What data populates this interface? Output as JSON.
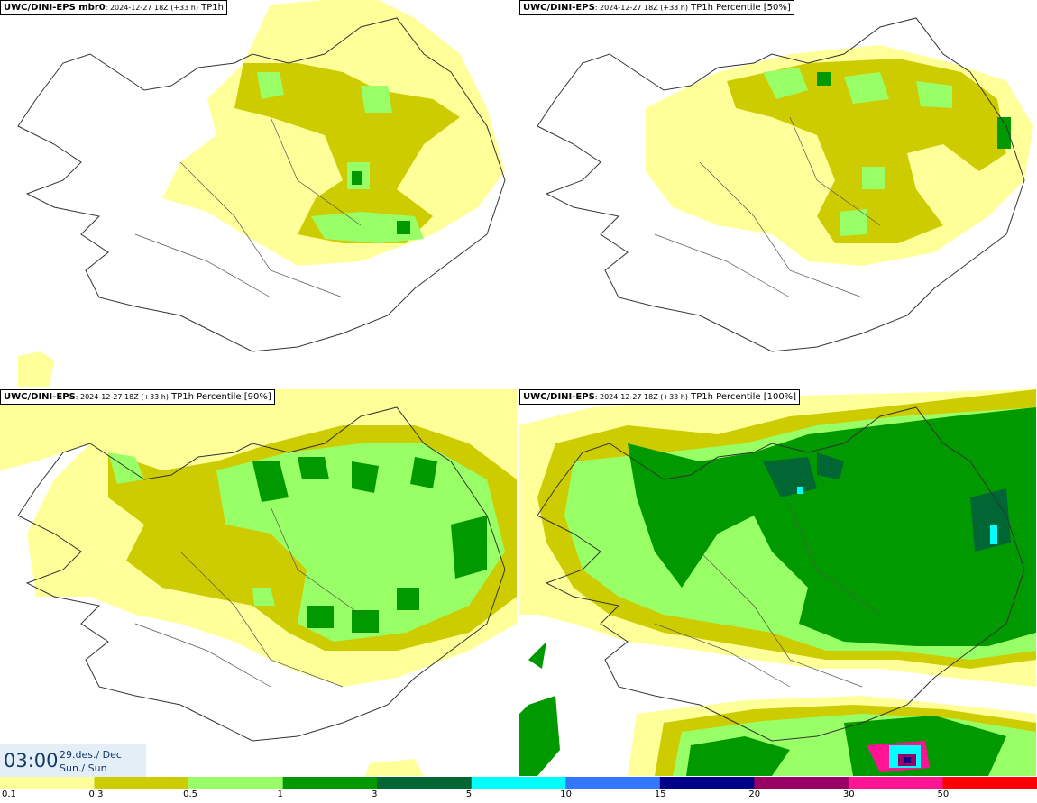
{
  "panels": [
    {
      "title_bold": "UWC/DINI-EPS mbr0",
      "title_small": ": 2024-12-27 18Z (+33 h)",
      "title_rest": " TP1h"
    },
    {
      "title_bold": "UWC/DINI-EPS",
      "title_small": ": 2024-12-27 18Z (+33 h)",
      "title_rest": " TP1h Percentile [50%]"
    },
    {
      "title_bold": "UWC/DINI-EPS",
      "title_small": ": 2024-12-27 18Z (+33 h)",
      "title_rest": " TP1h Percentile [90%]"
    },
    {
      "title_bold": "UWC/DINI-EPS",
      "title_small": ": 2024-12-27 18Z (+33 h)",
      "title_rest": " TP1h Percentile [100%]"
    }
  ],
  "time": {
    "clock": "03:00",
    "date": "29.des./ Dec",
    "day": "Sun./ Sun"
  },
  "legend": {
    "colors": [
      "#ffff99",
      "#cccc00",
      "#99ff66",
      "#009900",
      "#006633",
      "#00ffff",
      "#3377ff",
      "#000088",
      "#990066",
      "#ff1493",
      "#ff0000"
    ],
    "ticks": [
      "0.1",
      "0.3",
      "0.5",
      "1",
      "3",
      "5",
      "10",
      "15",
      "20",
      "30",
      "50"
    ]
  }
}
